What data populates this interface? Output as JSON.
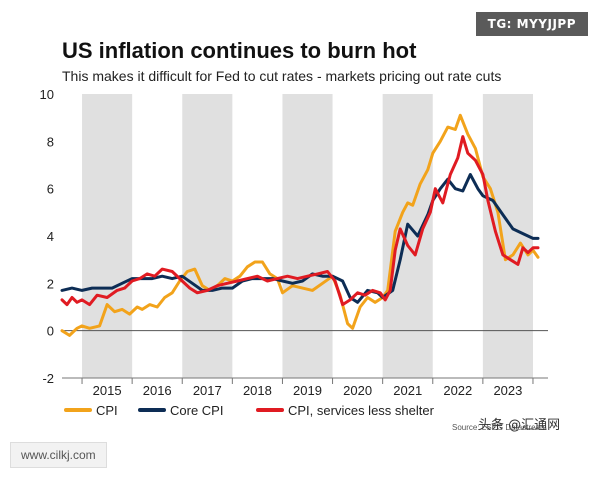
{
  "header": {
    "tag": "TG: MYYJJPP",
    "title": "US inflation continues to burn hot",
    "subtitle": "This makes it difficult for Fed to cut rates - markets pricing out rate cuts"
  },
  "footer": {
    "watermark": "www.cilkj.com",
    "source": "Source: LSEG Datastream",
    "brand": "头条 @汇通网"
  },
  "colors": {
    "cpi": "#f2a31b",
    "core_cpi": "#0d2d55",
    "services": "#e01b22",
    "band": "#e0e0e0",
    "zero_line": "#555555"
  },
  "chart_data": {
    "type": "line",
    "title": "US inflation continues to burn hot",
    "subtitle": "This makes it difficult for Fed to cut rates - markets pricing out rate cuts",
    "xlabel": "",
    "ylabel": "",
    "xlim": [
      2014.6,
      2024.3
    ],
    "ylim": [
      -2,
      10
    ],
    "yticks": [
      -2,
      0,
      2,
      4,
      6,
      8,
      10
    ],
    "year_labels": [
      "2015",
      "2016",
      "2017",
      "2018",
      "2019",
      "2020",
      "2021",
      "2022",
      "2023"
    ],
    "shaded_years": [
      2015,
      2017,
      2019,
      2021,
      2023
    ],
    "legend_position": "bottom-left",
    "series": [
      {
        "name": "CPI",
        "key": "cpi",
        "x": [
          2014.6,
          2014.75,
          2014.9,
          2015.0,
          2015.15,
          2015.35,
          2015.5,
          2015.65,
          2015.8,
          2015.95,
          2016.1,
          2016.2,
          2016.35,
          2016.5,
          2016.65,
          2016.8,
          2016.95,
          2017.1,
          2017.25,
          2017.4,
          2017.55,
          2017.7,
          2017.85,
          2018.0,
          2018.15,
          2018.3,
          2018.45,
          2018.6,
          2018.75,
          2018.9,
          2019.0,
          2019.2,
          2019.4,
          2019.6,
          2019.8,
          2020.0,
          2020.15,
          2020.3,
          2020.4,
          2020.55,
          2020.7,
          2020.85,
          2021.0,
          2021.1,
          2021.25,
          2021.4,
          2021.5,
          2021.6,
          2021.75,
          2021.9,
          2022.0,
          2022.15,
          2022.3,
          2022.45,
          2022.55,
          2022.7,
          2022.85,
          2023.0,
          2023.15,
          2023.3,
          2023.45,
          2023.6,
          2023.75,
          2023.9,
          2024.0,
          2024.1
        ],
        "values": [
          0,
          -0.2,
          0.1,
          0.2,
          0.1,
          0.2,
          1.1,
          0.8,
          0.9,
          0.7,
          1.0,
          0.9,
          1.1,
          1.0,
          1.4,
          1.6,
          2.1,
          2.5,
          2.6,
          1.9,
          1.7,
          1.9,
          2.2,
          2.1,
          2.3,
          2.7,
          2.9,
          2.9,
          2.4,
          2.2,
          1.6,
          1.9,
          1.8,
          1.7,
          2.0,
          2.3,
          1.5,
          0.3,
          0.1,
          1.0,
          1.4,
          1.2,
          1.4,
          1.7,
          4.2,
          5.0,
          5.4,
          5.3,
          6.2,
          6.8,
          7.5,
          8.0,
          8.6,
          8.5,
          9.1,
          8.3,
          7.7,
          6.5,
          6.0,
          5.0,
          3.0,
          3.2,
          3.7,
          3.2,
          3.4,
          3.1
        ]
      },
      {
        "name": "Core CPI",
        "key": "core_cpi",
        "x": [
          2014.6,
          2014.8,
          2015.0,
          2015.2,
          2015.4,
          2015.6,
          2015.8,
          2016.0,
          2016.2,
          2016.4,
          2016.6,
          2016.8,
          2017.0,
          2017.2,
          2017.4,
          2017.6,
          2017.8,
          2018.0,
          2018.2,
          2018.4,
          2018.6,
          2018.8,
          2019.0,
          2019.2,
          2019.4,
          2019.6,
          2019.8,
          2020.0,
          2020.2,
          2020.35,
          2020.5,
          2020.7,
          2020.9,
          2021.0,
          2021.2,
          2021.35,
          2021.5,
          2021.7,
          2021.9,
          2022.0,
          2022.15,
          2022.3,
          2022.45,
          2022.6,
          2022.75,
          2022.9,
          2023.0,
          2023.2,
          2023.4,
          2023.6,
          2023.8,
          2024.0,
          2024.1
        ],
        "values": [
          1.7,
          1.8,
          1.7,
          1.8,
          1.8,
          1.8,
          2.0,
          2.2,
          2.2,
          2.2,
          2.3,
          2.2,
          2.3,
          2.0,
          1.7,
          1.7,
          1.8,
          1.8,
          2.1,
          2.2,
          2.2,
          2.2,
          2.1,
          2.0,
          2.1,
          2.4,
          2.3,
          2.3,
          2.1,
          1.4,
          1.2,
          1.7,
          1.6,
          1.4,
          1.7,
          3.0,
          4.5,
          4.0,
          4.9,
          5.5,
          6.0,
          6.4,
          6.0,
          5.9,
          6.6,
          6.0,
          5.7,
          5.5,
          4.9,
          4.3,
          4.1,
          3.9,
          3.9
        ]
      },
      {
        "name": "CPI, services less shelter",
        "key": "services",
        "x": [
          2014.6,
          2014.7,
          2014.8,
          2014.9,
          2015.0,
          2015.15,
          2015.3,
          2015.5,
          2015.7,
          2015.85,
          2016.0,
          2016.15,
          2016.3,
          2016.45,
          2016.6,
          2016.8,
          2017.0,
          2017.15,
          2017.3,
          2017.5,
          2017.7,
          2017.9,
          2018.1,
          2018.3,
          2018.5,
          2018.7,
          2018.9,
          2019.1,
          2019.3,
          2019.5,
          2019.7,
          2019.9,
          2020.05,
          2020.2,
          2020.35,
          2020.5,
          2020.65,
          2020.8,
          2020.95,
          2021.05,
          2021.15,
          2021.25,
          2021.35,
          2021.5,
          2021.65,
          2021.8,
          2021.95,
          2022.05,
          2022.2,
          2022.35,
          2022.5,
          2022.6,
          2022.7,
          2022.85,
          2023.0,
          2023.1,
          2023.25,
          2023.4,
          2023.55,
          2023.7,
          2023.8,
          2023.9,
          2024.0,
          2024.1
        ],
        "values": [
          1.3,
          1.1,
          1.4,
          1.2,
          1.3,
          1.1,
          1.5,
          1.4,
          1.7,
          1.8,
          2.1,
          2.2,
          2.4,
          2.3,
          2.6,
          2.5,
          2.1,
          1.8,
          1.6,
          1.7,
          1.9,
          2.0,
          2.1,
          2.2,
          2.3,
          2.1,
          2.2,
          2.3,
          2.2,
          2.3,
          2.4,
          2.5,
          2.1,
          1.1,
          1.3,
          1.6,
          1.5,
          1.7,
          1.6,
          1.3,
          1.7,
          3.4,
          4.3,
          3.6,
          3.2,
          4.3,
          5.0,
          6.0,
          5.4,
          6.6,
          7.3,
          8.2,
          7.5,
          7.2,
          6.6,
          5.5,
          4.2,
          3.2,
          3.0,
          2.8,
          3.5,
          3.3,
          3.5,
          3.5
        ]
      }
    ]
  }
}
